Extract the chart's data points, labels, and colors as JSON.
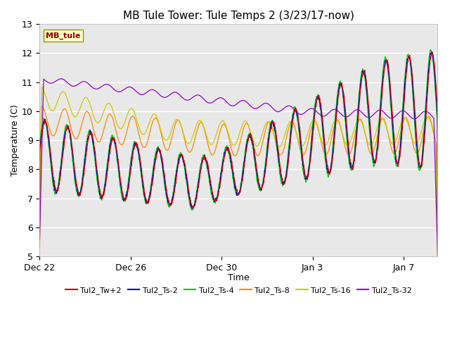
{
  "title": "MB Tule Tower: Tule Temps 2 (3/23/17-now)",
  "xlabel": "Time",
  "ylabel": "Temperature (C)",
  "ylim": [
    5.0,
    13.0
  ],
  "yticks": [
    5.0,
    6.0,
    7.0,
    8.0,
    9.0,
    10.0,
    11.0,
    12.0,
    13.0
  ],
  "fig_bg_color": "#ffffff",
  "plot_bg_color": "#e8e8e8",
  "legend_label": "MB_tule",
  "series": [
    {
      "label": "Tul2_Tw+2",
      "color": "#cc0000"
    },
    {
      "label": "Tul2_Ts-2",
      "color": "#0000dd"
    },
    {
      "label": "Tul2_Ts-4",
      "color": "#00cc00"
    },
    {
      "label": "Tul2_Ts-8",
      "color": "#ff8800"
    },
    {
      "label": "Tul2_Ts-16",
      "color": "#cccc00"
    },
    {
      "label": "Tul2_Ts-32",
      "color": "#9900cc"
    }
  ],
  "x_tick_labels": [
    "Dec 22",
    "Dec 26",
    "Dec 30",
    "Jan 3",
    "Jan 7"
  ],
  "x_tick_positions": [
    0,
    4,
    8,
    12,
    16
  ]
}
